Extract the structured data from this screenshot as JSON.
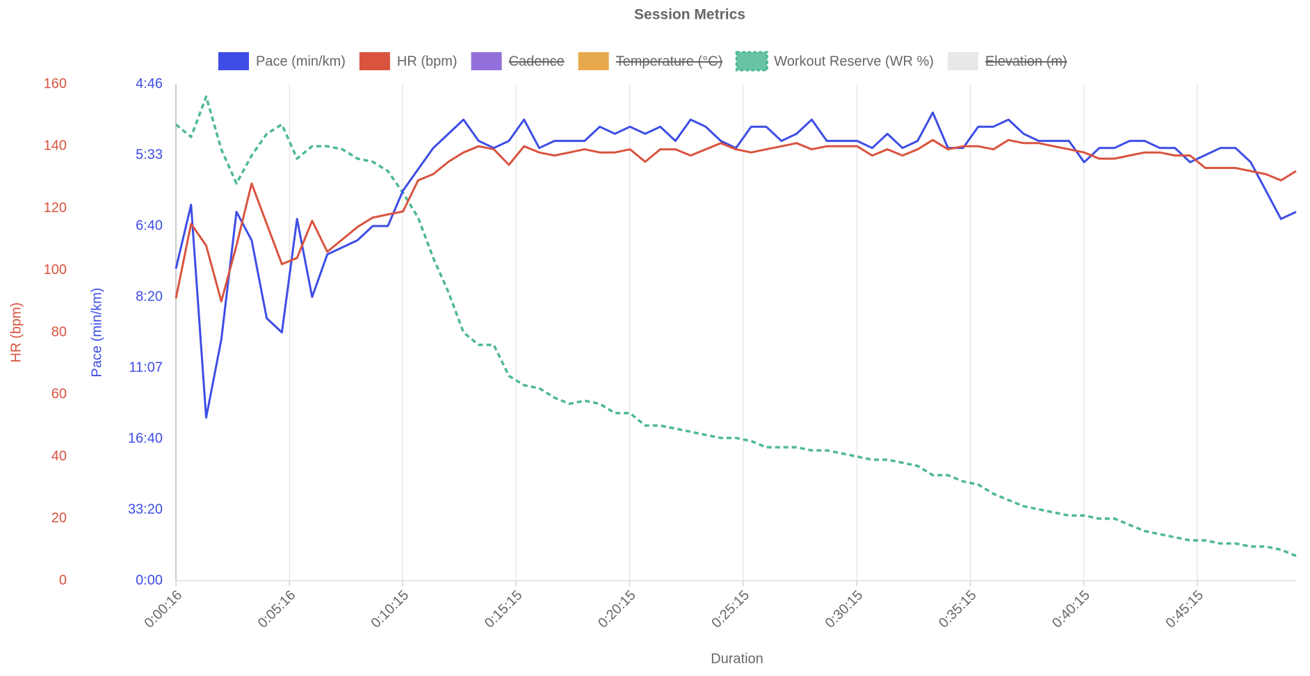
{
  "chart_data": {
    "type": "line",
    "title": "Session Metrics",
    "xlabel": "Duration",
    "ylabel": "Pace (min/km)",
    "y2label": "HR (bpm)",
    "grid": "x",
    "legend": "top",
    "x": [
      16,
      56,
      96,
      136,
      176,
      216,
      256,
      296,
      336,
      376,
      416,
      456,
      496,
      536,
      576,
      616,
      656,
      696,
      736,
      776,
      816,
      856,
      896,
      936,
      976,
      1016,
      1056,
      1096,
      1136,
      1176,
      1216,
      1256,
      1296,
      1336,
      1376,
      1416,
      1456,
      1496,
      1536,
      1576,
      1616,
      1656,
      1696,
      1736,
      1776,
      1816,
      1856,
      1896,
      1936,
      1976,
      2016,
      2056,
      2096,
      2136,
      2176,
      2216,
      2256,
      2296,
      2336,
      2376,
      2416,
      2456,
      2496,
      2536,
      2576,
      2616,
      2656,
      2696,
      2736,
      2776,
      2816,
      2856,
      2896,
      2936,
      2976
    ],
    "xlim": [
      16,
      2976
    ],
    "xticks": [
      {
        "value": 16,
        "label": "0:00:16"
      },
      {
        "value": 316,
        "label": "0:05:16"
      },
      {
        "value": 615,
        "label": "0:10:15"
      },
      {
        "value": 915,
        "label": "0:15:15"
      },
      {
        "value": 1215,
        "label": "0:20:15"
      },
      {
        "value": 1515,
        "label": "0:25:15"
      },
      {
        "value": 1815,
        "label": "0:30:15"
      },
      {
        "value": 2115,
        "label": "0:35:15"
      },
      {
        "value": 2415,
        "label": "0:40:15"
      },
      {
        "value": 2715,
        "label": "0:45:15"
      }
    ],
    "ylim": [
      0,
      3.5
    ],
    "yticks": [
      {
        "value": 3.5,
        "label": "4:46"
      },
      {
        "value": 3,
        "label": "5:33"
      },
      {
        "value": 2.5,
        "label": "6:40"
      },
      {
        "value": 2,
        "label": "8:20"
      },
      {
        "value": 1.5,
        "label": "11:07"
      },
      {
        "value": 1,
        "label": "16:40"
      },
      {
        "value": 0.5,
        "label": "33:20"
      },
      {
        "value": 0,
        "label": "0:00"
      }
    ],
    "y2lim": [
      0,
      160
    ],
    "y2ticks": [
      160,
      140,
      120,
      100,
      80,
      60,
      40,
      20,
      0
    ],
    "series": [
      {
        "name": "Pace (min/km)",
        "color": "#3d4de6",
        "axis": "y",
        "values": [
          2.2,
          2.65,
          1.15,
          1.7,
          2.6,
          2.4,
          1.85,
          1.75,
          2.55,
          2.0,
          2.3,
          2.35,
          2.4,
          2.5,
          2.5,
          2.75,
          2.9,
          3.05,
          3.15,
          3.25,
          3.1,
          3.05,
          3.1,
          3.25,
          3.05,
          3.1,
          3.1,
          3.1,
          3.2,
          3.15,
          3.2,
          3.15,
          3.2,
          3.1,
          3.25,
          3.2,
          3.1,
          3.05,
          3.2,
          3.2,
          3.1,
          3.15,
          3.25,
          3.1,
          3.1,
          3.1,
          3.05,
          3.15,
          3.05,
          3.1,
          3.3,
          3.05,
          3.05,
          3.2,
          3.2,
          3.25,
          3.15,
          3.1,
          3.1,
          3.1,
          2.95,
          3.05,
          3.05,
          3.1,
          3.1,
          3.05,
          3.05,
          2.95,
          3.0,
          3.05,
          3.05,
          2.95,
          2.75,
          2.55,
          2.6
        ]
      },
      {
        "name": "HR (bpm)",
        "color": "#d9533f",
        "axis": "y2",
        "values": [
          91,
          115,
          108,
          90,
          108,
          128,
          115,
          102,
          104,
          116,
          106,
          110,
          114,
          117,
          118,
          119,
          129,
          131,
          135,
          138,
          140,
          139,
          134,
          140,
          138,
          137,
          138,
          139,
          138,
          138,
          139,
          135,
          139,
          139,
          137,
          139,
          141,
          139,
          138,
          139,
          140,
          141,
          139,
          140,
          140,
          140,
          137,
          139,
          137,
          139,
          142,
          139,
          140,
          140,
          139,
          142,
          141,
          141,
          140,
          139,
          138,
          136,
          136,
          137,
          138,
          138,
          137,
          137,
          133,
          133,
          133,
          132,
          131,
          129,
          132
        ]
      },
      {
        "name": "Cadence",
        "color": "#9370db",
        "hidden": true
      },
      {
        "name": "Temperature (°C)",
        "color": "#e8a94e",
        "hidden": true
      },
      {
        "name": "Workout Reserve (WR %)",
        "color": "#4db896",
        "axis": "y2",
        "dashed": true,
        "values": [
          147,
          143,
          156,
          139,
          128,
          137,
          144,
          147,
          136,
          140,
          140,
          139,
          136,
          135,
          132,
          125,
          117,
          104,
          93,
          80,
          76,
          76,
          66,
          63,
          62,
          59,
          57,
          58,
          57,
          54,
          54,
          50,
          50,
          49,
          48,
          47,
          46,
          46,
          45,
          43,
          43,
          43,
          42,
          42,
          41,
          40,
          39,
          39,
          38,
          37,
          34,
          34,
          32,
          31,
          28,
          26,
          24,
          23,
          22,
          21,
          21,
          20,
          20,
          18,
          16,
          15,
          14,
          13,
          13,
          12,
          12,
          11,
          11,
          10,
          8
        ]
      },
      {
        "name": "Elevation (m)",
        "color": "#e8e8e8",
        "hidden": true
      }
    ]
  }
}
